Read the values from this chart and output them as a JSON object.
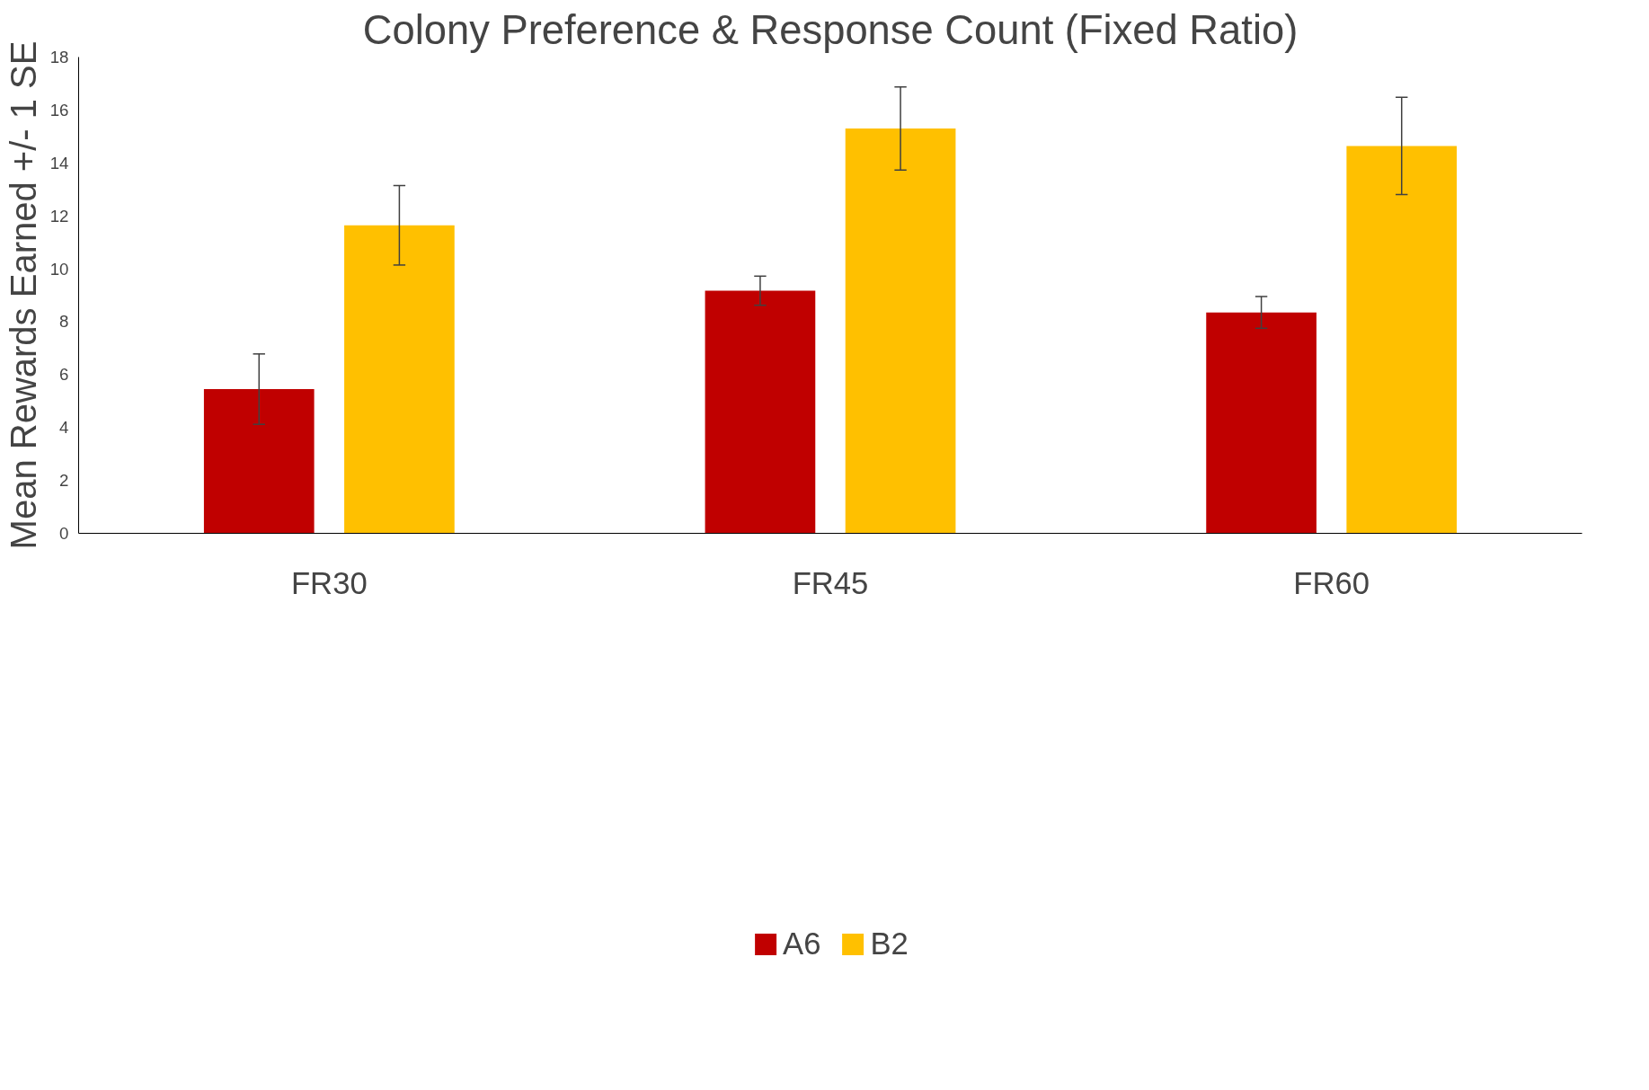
{
  "chart_data": {
    "type": "bar",
    "title": "Colony Preference & Response Count (Fixed Ratio)",
    "ylabel": "Mean Rewards Earned +/- 1 SE",
    "categories": [
      "FR30",
      "FR45",
      "FR60"
    ],
    "series": [
      {
        "name": "A6",
        "color": "#c00000",
        "values": [
          5.45,
          9.17,
          8.35
        ],
        "errors": [
          1.33,
          0.55,
          0.6
        ]
      },
      {
        "name": "B2",
        "color": "#ffc000",
        "values": [
          11.64,
          15.3,
          14.64
        ],
        "errors": [
          1.5,
          1.57,
          1.84
        ]
      }
    ],
    "ylim": [
      0,
      18
    ],
    "yticks": [
      0,
      2,
      4,
      6,
      8,
      10,
      12,
      14,
      16,
      18
    ],
    "grid": false,
    "legend": "bottom"
  }
}
